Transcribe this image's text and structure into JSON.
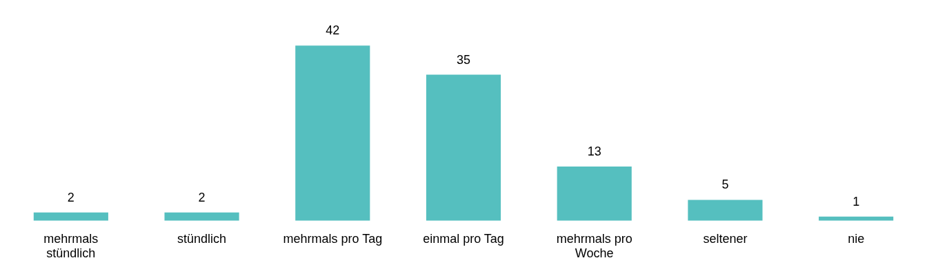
{
  "chart_data": {
    "type": "bar",
    "categories": [
      "mehrmals stündlich",
      "stündlich",
      "mehrmals pro Tag",
      "einmal pro Tag",
      "mehrmals pro Woche",
      "seltener",
      "nie"
    ],
    "values": [
      2,
      2,
      42,
      35,
      13,
      5,
      1
    ],
    "color": "#55bfbf",
    "data_labels": true,
    "grid": false,
    "legend": false
  }
}
